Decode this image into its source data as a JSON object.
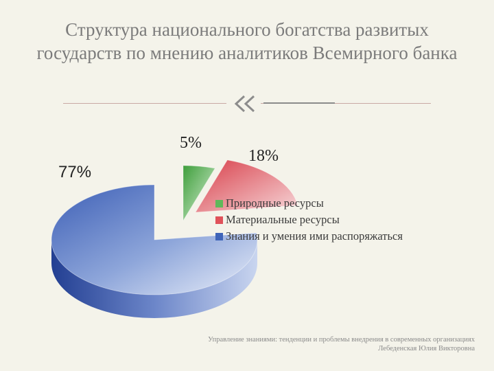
{
  "slide": {
    "title": "Структура национального богатства развитых государств по мнению аналитиков Всемирного банка",
    "footer_line1": "Управление знаниями: тенденции и проблемы внедрения в современных организациях",
    "footer_line2": "Лебеденская Юлия Викторовна",
    "ornament_icon": "double-chevron-left-icon"
  },
  "chart_data": {
    "type": "pie",
    "title": "",
    "categories": [
      "Природные ресурсы",
      "Материальные ресурсы",
      "Знания и умения ими распоряжаться"
    ],
    "values": [
      5,
      18,
      77
    ],
    "data_labels": [
      "5%",
      "18%",
      "77%"
    ],
    "colors": [
      "#5fb85a",
      "#e0525a",
      "#3f64b8"
    ],
    "legend_position": "right",
    "three_d": true
  }
}
